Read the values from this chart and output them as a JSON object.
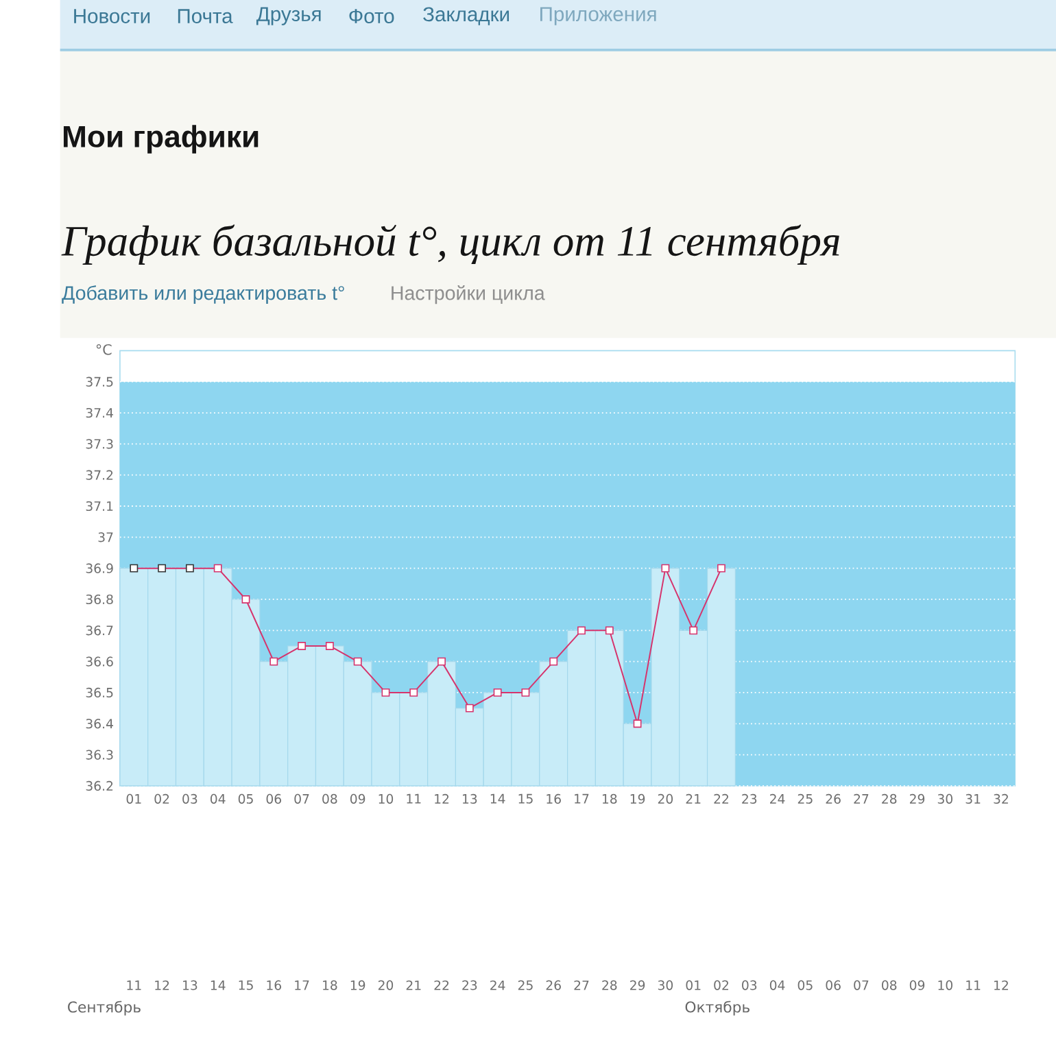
{
  "chart_data": {
    "type": "line",
    "title": "График базальной t°, цикл от 11 сентября",
    "ylabel": "°C",
    "categories": [
      "01",
      "02",
      "03",
      "04",
      "05",
      "06",
      "07",
      "08",
      "09",
      "10",
      "11",
      "12",
      "13",
      "14",
      "15",
      "16",
      "17",
      "18",
      "19",
      "20",
      "21",
      "22",
      "23",
      "24",
      "25",
      "26",
      "27",
      "28",
      "29",
      "30",
      "31",
      "32"
    ],
    "series": [
      {
        "type": "bar",
        "color": "#c8ecf8",
        "values": [
          36.9,
          36.9,
          36.9,
          36.9,
          36.8,
          36.6,
          36.65,
          36.65,
          36.6,
          36.5,
          36.5,
          36.6,
          36.45,
          36.5,
          36.5,
          36.6,
          36.7,
          36.7,
          36.4,
          36.9,
          36.7,
          36.9,
          null,
          null,
          null,
          null,
          null,
          null,
          null,
          null,
          null,
          null
        ]
      },
      {
        "color": "#d6336c",
        "colors": [
          "#333333",
          "#333333",
          "#333333",
          "#d6336c",
          "#d6336c",
          "#d6336c",
          "#d6336c",
          "#d6336c",
          "#d6336c",
          "#d6336c",
          "#d6336c",
          "#d6336c",
          "#d6336c",
          "#d6336c",
          "#d6336c",
          "#d6336c",
          "#d6336c",
          "#d6336c",
          "#d6336c",
          "#d6336c",
          "#d6336c",
          "#d6336c",
          null,
          null,
          null,
          null,
          null,
          null,
          null,
          null,
          null,
          null
        ],
        "values": [
          36.9,
          36.9,
          36.9,
          36.9,
          36.8,
          36.6,
          36.65,
          36.65,
          36.6,
          36.5,
          36.5,
          36.6,
          36.45,
          36.5,
          36.5,
          36.6,
          36.7,
          36.7,
          36.4,
          36.9,
          36.7,
          36.9,
          null,
          null,
          null,
          null,
          null,
          null,
          null,
          null,
          null,
          null
        ]
      }
    ],
    "marker": "square",
    "ylim": [
      36.2,
      37.6
    ],
    "yticks": [
      36.2,
      36.3,
      36.4,
      36.5,
      36.6,
      36.7,
      36.8,
      36.9,
      37,
      37.1,
      37.2,
      37.3,
      37.4,
      37.5
    ],
    "grid": "y",
    "bands": [
      {
        "axis": "y",
        "from": 36.2,
        "to": 37.5,
        "color": "#8ed6f0"
      }
    ],
    "annotations": [
      "Новости",
      "Почта",
      "Друзья",
      "Фото",
      "Закладки",
      "Приложения",
      "Мои графики",
      "Добавить или редактировать t°",
      "Настройки цикла",
      "Сентябрь",
      "Октябрь",
      "11",
      "12",
      "13",
      "14",
      "15",
      "16",
      "17",
      "18",
      "19",
      "20",
      "21",
      "22",
      "23",
      "24",
      "25",
      "26",
      "27",
      "28",
      "29",
      "30",
      "01",
      "02",
      "03",
      "04",
      "05",
      "06",
      "07",
      "08",
      "09",
      "10",
      "11",
      "12"
    ]
  }
}
